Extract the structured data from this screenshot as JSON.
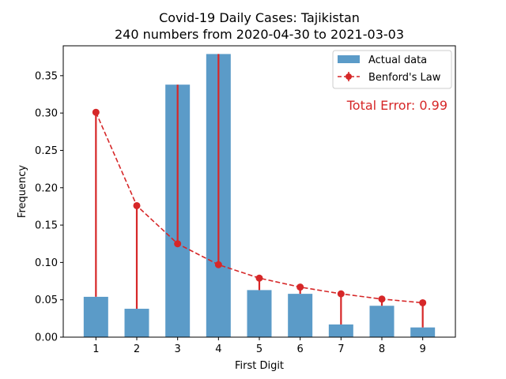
{
  "chart_data": {
    "type": "bar",
    "title": "Covid-19 Daily Cases: Tajikistan",
    "subtitle": "240 numbers from 2020-04-30 to 2021-03-03",
    "xlabel": "First Digit",
    "ylabel": "Frequency",
    "categories": [
      "1",
      "2",
      "3",
      "4",
      "5",
      "6",
      "7",
      "8",
      "9"
    ],
    "x": [
      1,
      2,
      3,
      4,
      5,
      6,
      7,
      8,
      9
    ],
    "ylim": [
      0,
      0.39
    ],
    "yticks": [
      0.0,
      0.05,
      0.1,
      0.15,
      0.2,
      0.25,
      0.3,
      0.35
    ],
    "ytick_labels": [
      "0.00",
      "0.05",
      "0.10",
      "0.15",
      "0.20",
      "0.25",
      "0.30",
      "0.35"
    ],
    "grid": false,
    "legend_position": "top-right",
    "series": [
      {
        "name": "Actual data",
        "kind": "bar",
        "color": "#5b9bc8",
        "values": [
          0.054,
          0.038,
          0.338,
          0.379,
          0.063,
          0.058,
          0.017,
          0.042,
          0.013
        ]
      },
      {
        "name": "Benford's Law",
        "kind": "line-with-markers",
        "color": "#d62728",
        "values": [
          0.301,
          0.176,
          0.125,
          0.097,
          0.079,
          0.067,
          0.058,
          0.051,
          0.046
        ]
      }
    ],
    "annotations": [
      {
        "text": "Total Error: 0.99",
        "color": "#d62728",
        "position": "top-right"
      }
    ]
  }
}
